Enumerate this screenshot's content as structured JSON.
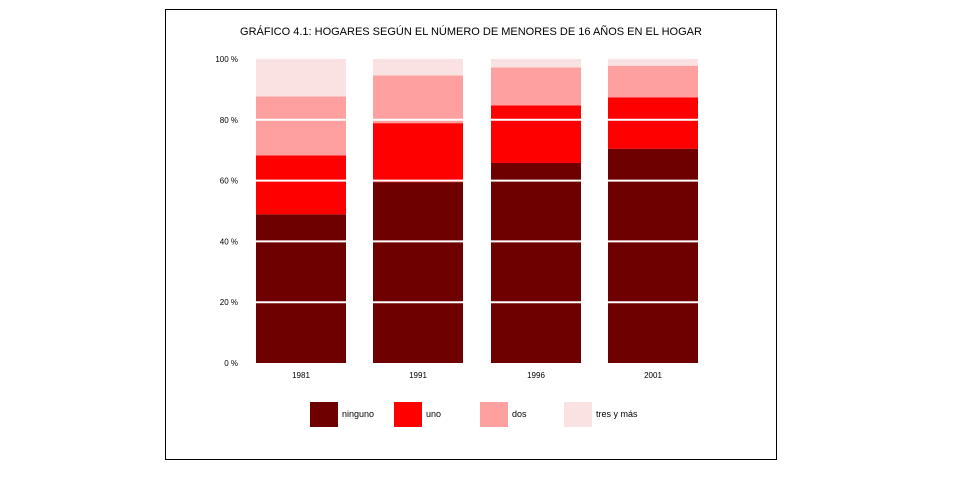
{
  "chart_data": {
    "type": "bar",
    "stacked": "percent",
    "title": "GRÁFICO 4.1: HOGARES SEGÚN EL NÚMERO DE MENORES DE 16 AÑOS EN EL HOGAR",
    "categories": [
      "1981",
      "1991",
      "1996",
      "2001"
    ],
    "series": [
      {
        "name": "ninguno",
        "color": "#6e0000",
        "values": [
          48.9,
          59.5,
          65.8,
          70.5
        ]
      },
      {
        "name": "uno",
        "color": "#ff0000",
        "values": [
          19.4,
          19.4,
          18.9,
          16.9
        ]
      },
      {
        "name": "dos",
        "color": "#ffa0a0",
        "values": [
          19.4,
          15.7,
          12.5,
          10.4
        ]
      },
      {
        "name": "tres y más",
        "color": "#fbe2e2",
        "values": [
          12.3,
          5.4,
          2.8,
          2.2
        ]
      }
    ],
    "ylim": [
      0,
      100
    ],
    "yticks": [
      "0 %",
      "20 %",
      "40 %",
      "60 %",
      "80 %",
      "100 %"
    ],
    "grid": true,
    "legend": "bottom"
  }
}
